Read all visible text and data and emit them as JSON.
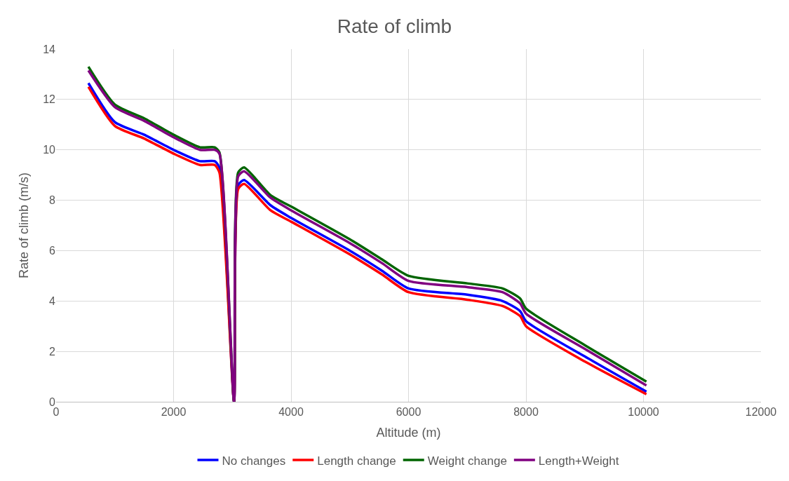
{
  "chart_data": {
    "type": "line",
    "title": "Rate of climb",
    "xlabel": "Altitude (m)",
    "ylabel": "Rate of climb (m/s)",
    "x": [
      550,
      1000,
      1500,
      2000,
      2450,
      2700,
      2780,
      3030,
      3100,
      3200,
      3650,
      4000,
      5000,
      5550,
      6000,
      7000,
      7600,
      7900,
      8000,
      9000,
      10050
    ],
    "series": [
      {
        "name": "No changes",
        "color": "#0000ff",
        "values": [
          12.65,
          11.1,
          10.6,
          10.0,
          9.55,
          9.55,
          9.3,
          0,
          8.6,
          8.8,
          7.8,
          7.3,
          6.0,
          5.2,
          4.5,
          4.25,
          4.0,
          3.6,
          3.2,
          1.8,
          0.4
        ]
      },
      {
        "name": "Length change",
        "color": "#ff0000",
        "values": [
          12.5,
          10.95,
          10.45,
          9.85,
          9.4,
          9.4,
          9.1,
          0,
          8.45,
          8.65,
          7.6,
          7.15,
          5.85,
          5.05,
          4.35,
          4.05,
          3.8,
          3.4,
          3.0,
          1.6,
          0.3
        ]
      },
      {
        "name": "Weight change",
        "color": "#006400",
        "values": [
          13.3,
          11.8,
          11.25,
          10.6,
          10.1,
          10.1,
          9.9,
          0,
          9.1,
          9.3,
          8.2,
          7.75,
          6.45,
          5.65,
          5.0,
          4.7,
          4.5,
          4.1,
          3.7,
          2.25,
          0.8
        ]
      },
      {
        "name": "Length+Weight",
        "color": "#800080",
        "values": [
          13.15,
          11.7,
          11.15,
          10.5,
          10.0,
          10.0,
          9.85,
          0,
          8.95,
          9.15,
          8.1,
          7.6,
          6.3,
          5.5,
          4.8,
          4.55,
          4.35,
          3.9,
          3.5,
          2.1,
          0.65
        ]
      }
    ],
    "xlim": [
      0,
      12000
    ],
    "xticks": [
      0,
      2000,
      4000,
      6000,
      8000,
      10000,
      12000
    ],
    "ylim": [
      0,
      14
    ],
    "yticks": [
      0,
      2,
      4,
      6,
      8,
      10,
      12,
      14
    ],
    "grid": true,
    "legend": "bottom",
    "marker": "none",
    "line_style": "solid"
  }
}
